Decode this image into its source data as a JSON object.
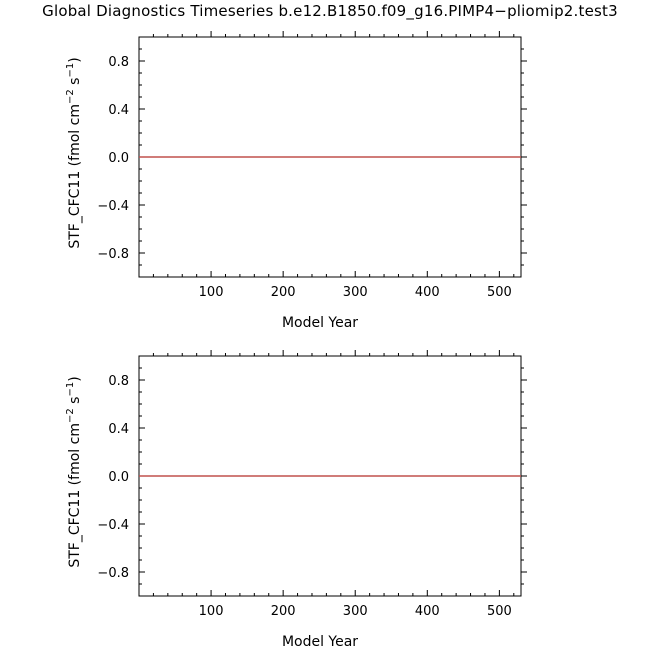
{
  "title": "Global Diagnostics Timeseries b.e12.B1850.f09_g16.PIMP4−pliomip2.test3",
  "colors": {
    "series": "#c0504d",
    "axis": "#000000"
  },
  "chart_data": [
    {
      "type": "line",
      "xlabel": "Model Year",
      "ylabel": "STF_CFC11 (fmol cm",
      "ylabel_sup1": "−2",
      "ylabel_mid": " s",
      "ylabel_sup2": "−1",
      "ylabel_end": ")",
      "xlim": [
        0,
        530
      ],
      "ylim": [
        -1.0,
        1.0
      ],
      "xticks": [
        100,
        200,
        300,
        400,
        500
      ],
      "yticks": [
        0.8,
        0.4,
        0.0,
        -0.4,
        -0.8
      ],
      "ytick_labels": [
        "0.8",
        "0.4",
        "0.0",
        "−0.4",
        "−0.8"
      ],
      "series": [
        {
          "x": [
            0,
            530
          ],
          "y": [
            0.0,
            0.0
          ]
        }
      ]
    },
    {
      "type": "line",
      "xlabel": "Model Year",
      "ylabel": "STF_CFC11 (fmol cm",
      "ylabel_sup1": "−2",
      "ylabel_mid": " s",
      "ylabel_sup2": "−1",
      "ylabel_end": ")",
      "xlim": [
        0,
        530
      ],
      "ylim": [
        -1.0,
        1.0
      ],
      "xticks": [
        100,
        200,
        300,
        400,
        500
      ],
      "yticks": [
        0.8,
        0.4,
        0.0,
        -0.4,
        -0.8
      ],
      "ytick_labels": [
        "0.8",
        "0.4",
        "0.0",
        "−0.4",
        "−0.8"
      ],
      "series": [
        {
          "x": [
            0,
            530
          ],
          "y": [
            0.0,
            0.0
          ]
        }
      ]
    }
  ]
}
